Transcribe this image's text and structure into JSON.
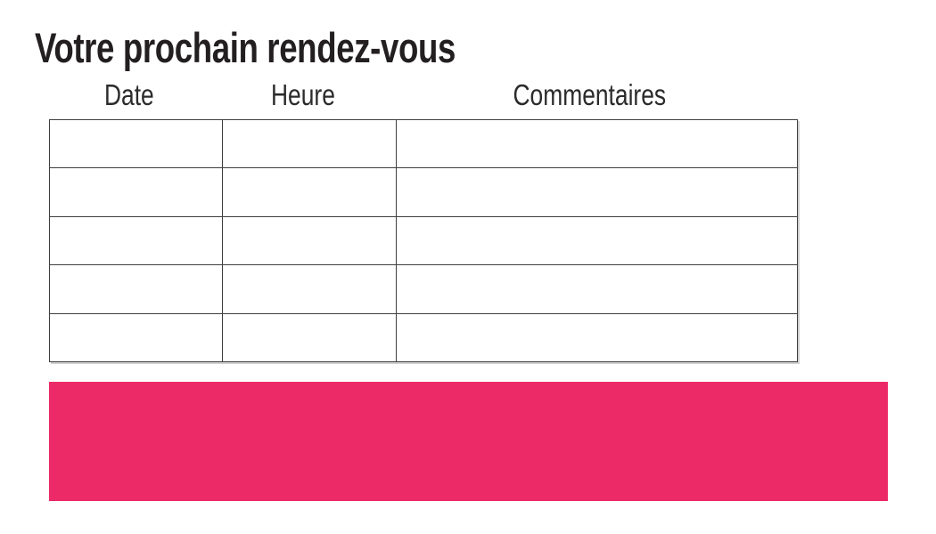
{
  "page": {
    "title": "Votre prochain rendez-vous"
  },
  "appointments_table": {
    "columns": [
      "Date",
      "Heure",
      "Commentaires"
    ],
    "rows": [
      [
        "",
        "",
        ""
      ],
      [
        "",
        "",
        ""
      ],
      [
        "",
        "",
        ""
      ],
      [
        "",
        "",
        ""
      ],
      [
        "",
        "",
        ""
      ]
    ]
  },
  "banner": {
    "text": "",
    "color": "#EC2A67"
  },
  "colors": {
    "background": "#FFFFFF",
    "text": "#231F20",
    "table_border": "#3E3E3E",
    "accent_pink": "#EC2A67"
  }
}
